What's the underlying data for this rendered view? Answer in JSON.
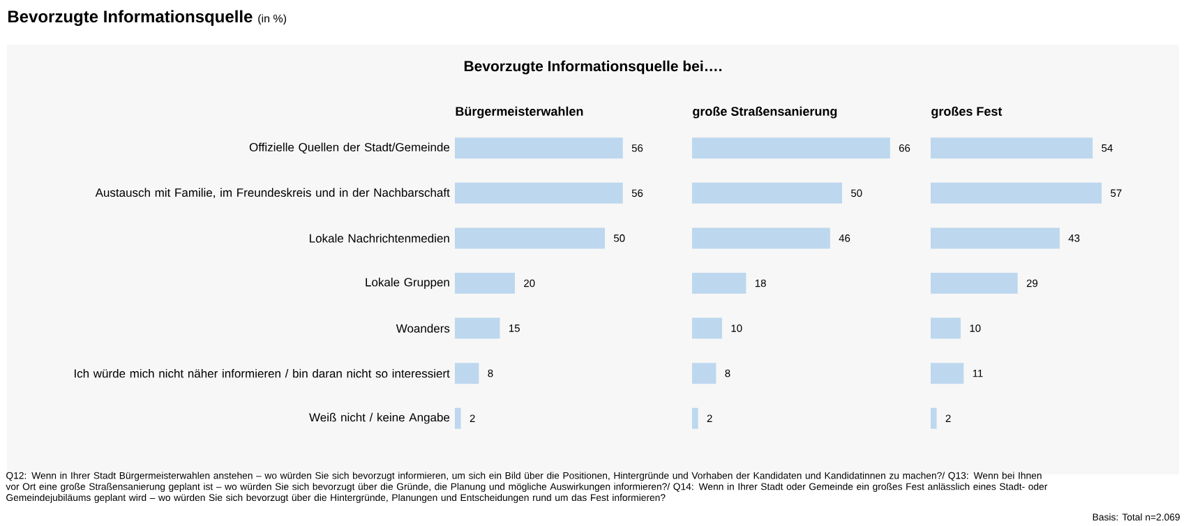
{
  "chart_data": [
    {
      "type": "bar",
      "orientation": "horizontal",
      "title": "Bürgermeisterwahlen",
      "categories": [
        "Offizielle Quellen der Stadt/Gemeinde",
        "Austausch mit Familie, im Freundeskreis und in der Nachbarschaft",
        "Lokale Nachrichtenmedien",
        "Lokale Gruppen",
        "Woanders",
        "Ich würde mich nicht näher informieren / bin daran nicht so interessiert",
        "Weiß nicht / keine Angabe"
      ],
      "values": [
        56,
        56,
        50,
        20,
        15,
        8,
        2
      ],
      "color": "#bdd7ee",
      "data_labels": true,
      "tick_labels": "y",
      "annotations": [
        "Bevorzugte Informationsquelle",
        "(in %)",
        "Bevorzugte Informationsquelle bei….",
        "Q12: Wenn in Ihrer Stadt Bürgermeisterwahlen anstehen – wo würden Sie sich bevorzugt informieren, um sich ein Bild über die Positionen, Hintergründe und Vorhaben der Kandidaten und Kandidatinnen zu machen?/ Q13: Wenn bei Ihnen vor Ort eine große Straßensanierung geplant ist – wo würden Sie sich bevorzugt über die Gründe, die Planung und mögliche Auswirkungen informieren?/ Q14: Wenn in Ihrer Stadt oder Gemeinde ein großes Fest anlässlich eines Stadt- oder Gemeindejubiläums geplant wird – wo würden Sie sich bevorzugt über die Hintergründe, Planungen und Entscheidungen rund um das Fest informieren?",
        "Basis: Total n=2.069"
      ]
    },
    {
      "type": "bar",
      "orientation": "horizontal",
      "title": "große Straßensanierung",
      "categories": [
        null,
        null,
        null,
        null,
        null,
        null,
        null
      ],
      "values": [
        66,
        50,
        46,
        18,
        10,
        8,
        2
      ],
      "color": "#bdd7ee",
      "data_labels": true
    },
    {
      "type": "bar",
      "orientation": "horizontal",
      "title": "großes Fest",
      "categories": [
        null,
        null,
        null,
        null,
        null,
        null,
        null
      ],
      "values": [
        54,
        57,
        43,
        29,
        10,
        11,
        2
      ],
      "color": "#bdd7ee",
      "data_labels": true
    }
  ]
}
